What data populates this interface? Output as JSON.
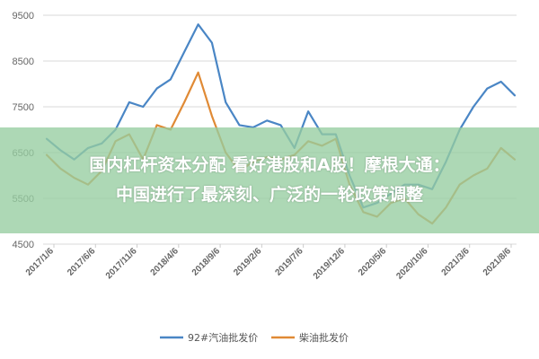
{
  "headline": {
    "line1": "国内杠杆资本分配 看好港股和A股！摩根大通：",
    "line2": "中国进行了最深刻、广泛的一轮政策调整"
  },
  "banner_color": "#96cda0",
  "chart_data": {
    "type": "line",
    "title": "",
    "xlabel": "",
    "ylabel": "",
    "ylim": [
      4500,
      9500
    ],
    "yticks": [
      4500,
      5500,
      6500,
      7500,
      8500,
      9500
    ],
    "xtick_labels": [
      "2017/1/6",
      "2017/6/6",
      "2017/11/6",
      "2018/4/6",
      "2018/9/6",
      "2019/2/6",
      "2019/7/6",
      "2019/12/6",
      "2020/5/6",
      "2020/10/6",
      "2021/3/6",
      "2021/8/6"
    ],
    "grid": true,
    "legend_position": "bottom",
    "x": [
      "2017/1",
      "2017/3",
      "2017/5",
      "2017/7",
      "2017/9",
      "2017/11",
      "2018/1",
      "2018/3",
      "2018/5",
      "2018/7",
      "2018/8",
      "2018/9",
      "2018/10",
      "2018/11",
      "2018/12",
      "2019/1",
      "2019/3",
      "2019/5",
      "2019/7",
      "2019/9",
      "2019/11",
      "2020/1",
      "2020/2",
      "2020/3",
      "2020/4",
      "2020/5",
      "2020/6",
      "2020/8",
      "2020/10",
      "2020/12",
      "2021/1",
      "2021/3",
      "2021/5",
      "2021/7",
      "2021/9"
    ],
    "series": [
      {
        "name": "92#汽油批发价",
        "color": "#4a86c5",
        "values": [
          6800,
          6550,
          6350,
          6600,
          6700,
          7000,
          7600,
          7500,
          7900,
          8100,
          8700,
          9300,
          8900,
          7600,
          7100,
          7050,
          7200,
          7100,
          6600,
          7400,
          6900,
          6900,
          6000,
          5300,
          5400,
          5600,
          5800,
          5800,
          5700,
          6300,
          7000,
          7500,
          7900,
          8050,
          7750
        ]
      },
      {
        "name": "柴油批发价",
        "color": "#e08a35",
        "values": [
          6450,
          6150,
          5950,
          5800,
          6100,
          6750,
          6900,
          6350,
          7100,
          7000,
          7600,
          8250,
          7300,
          6500,
          6100,
          6300,
          6400,
          6350,
          6450,
          6750,
          6650,
          6800,
          5800,
          5200,
          5100,
          5400,
          5500,
          5150,
          4950,
          5300,
          5800,
          6000,
          6150,
          6600,
          6350
        ]
      }
    ]
  }
}
